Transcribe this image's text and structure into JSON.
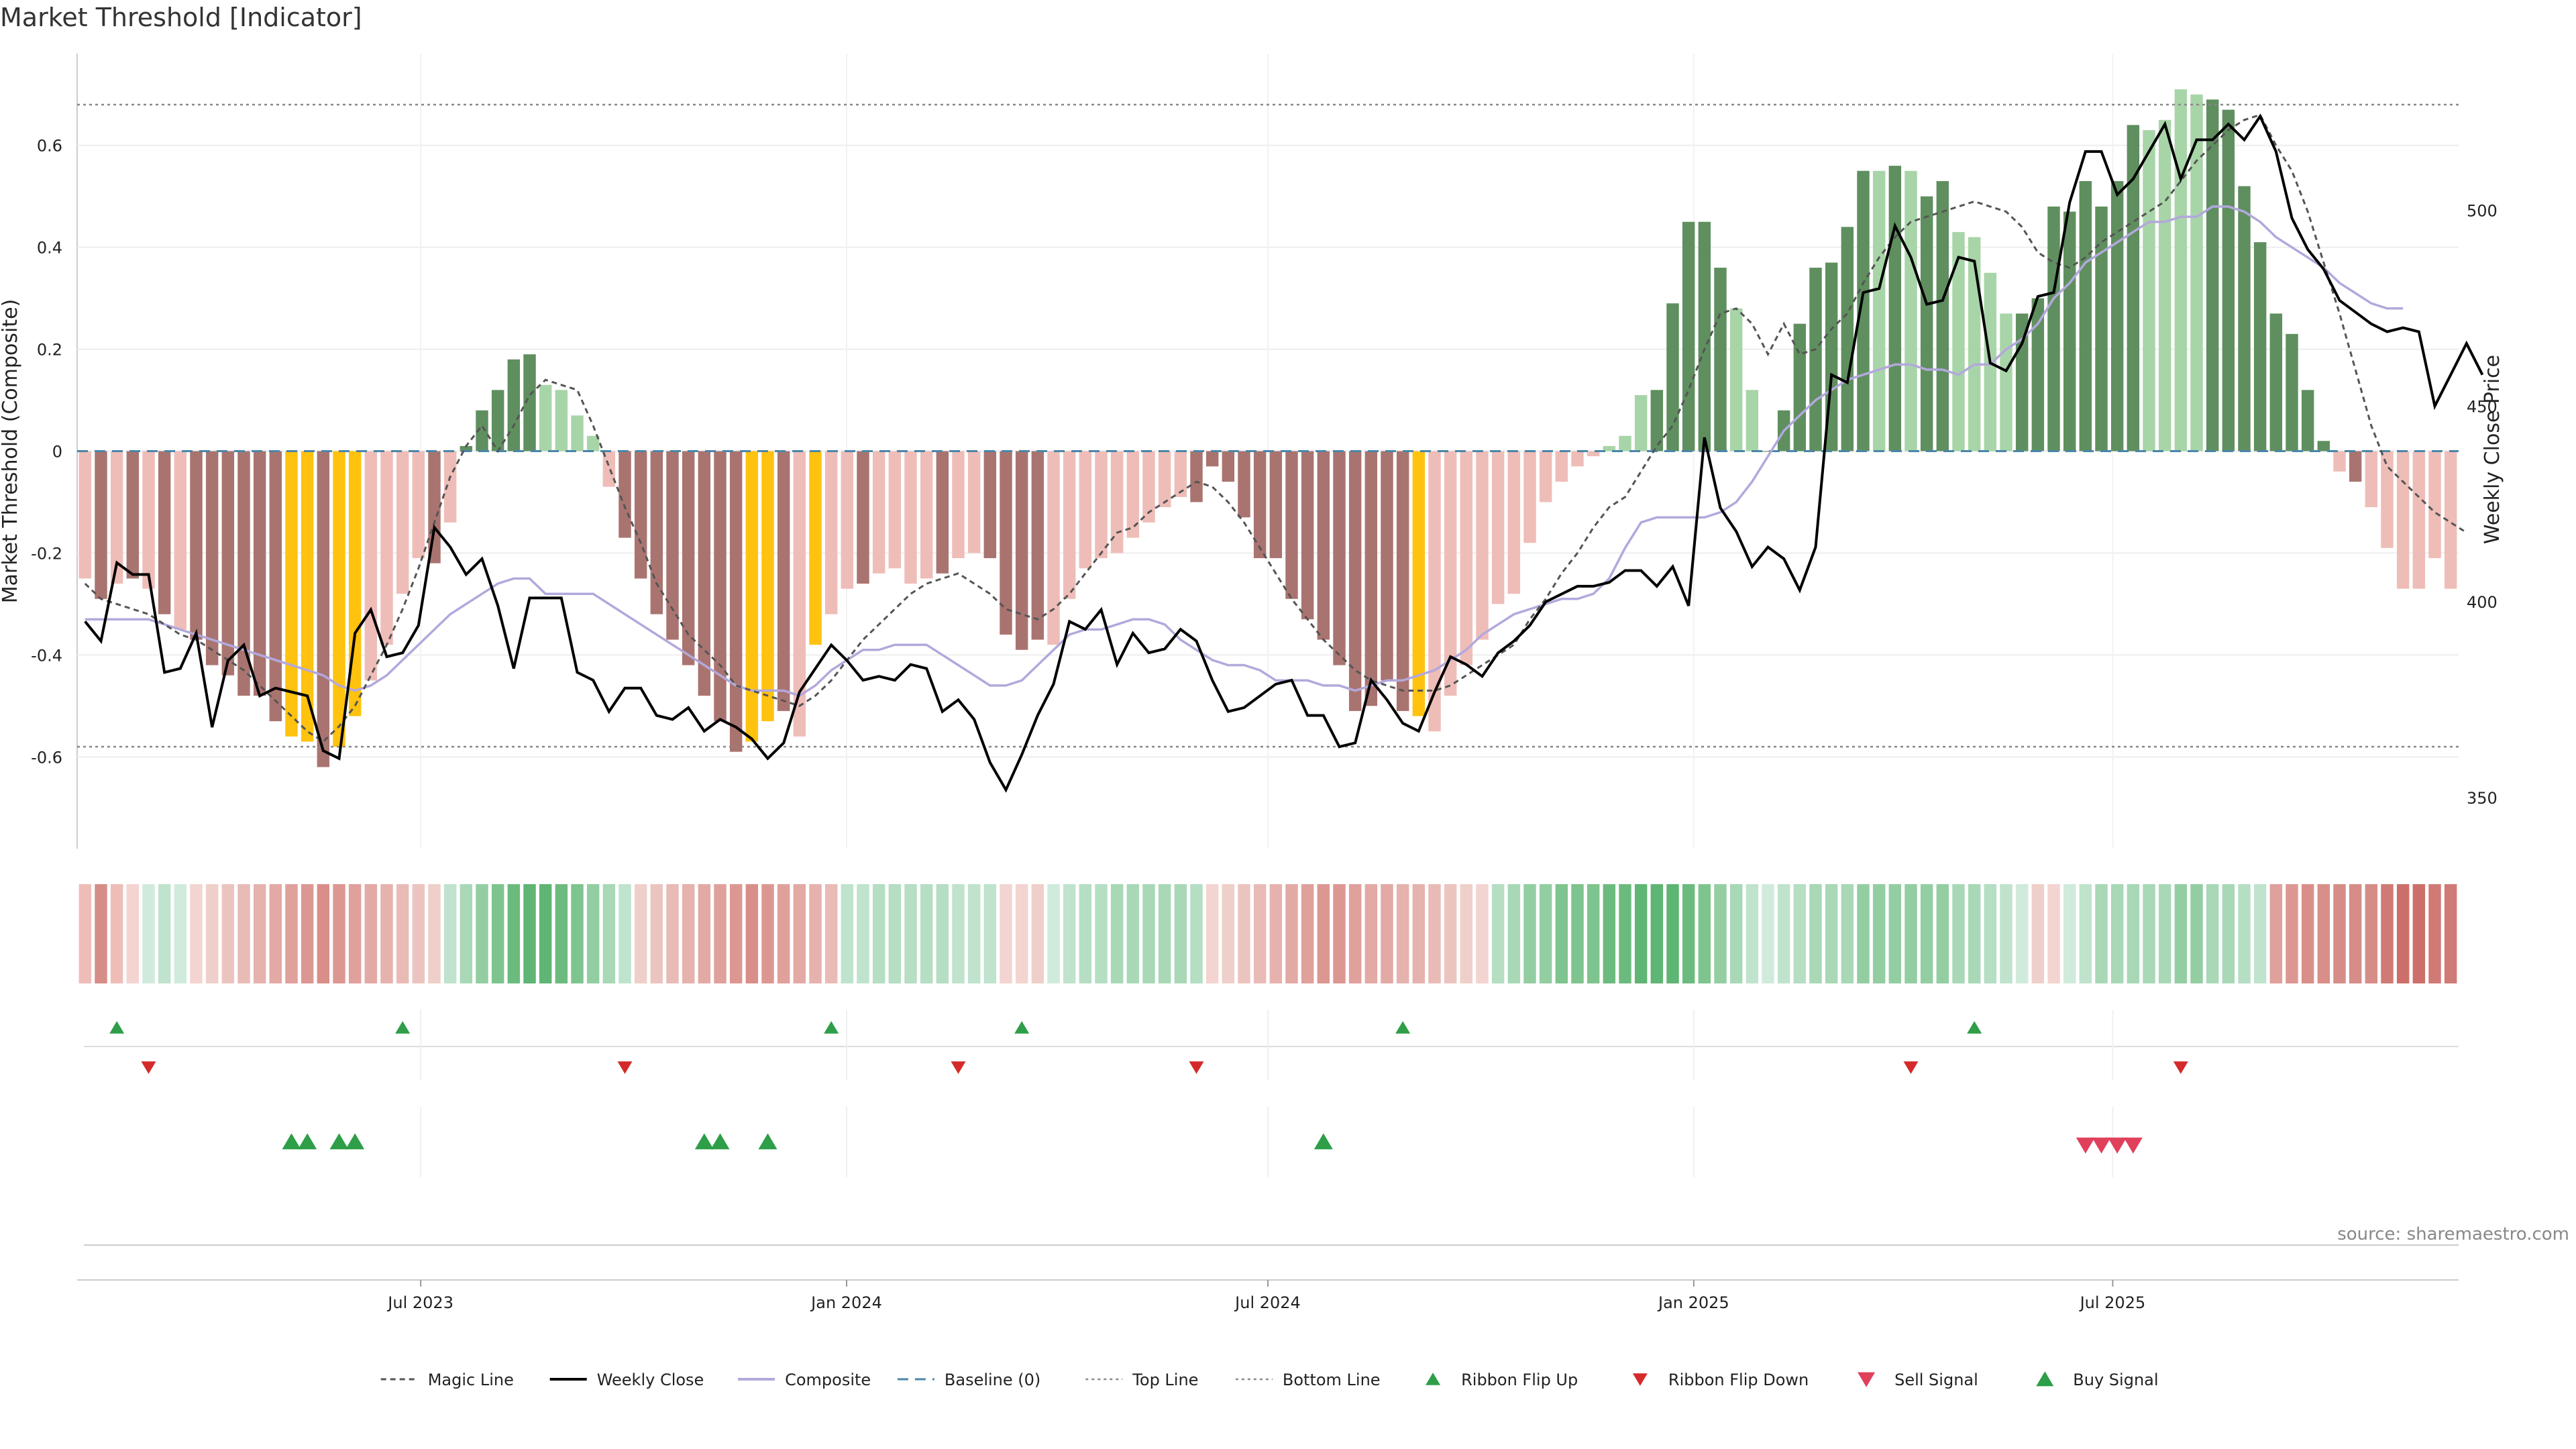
{
  "title": "Market Threshold [Indicator]",
  "source": "source: sharemaestro.com",
  "colors": {
    "bar_pos_strong": "#5f8f5f",
    "bar_pos_weak": "#a8d5a8",
    "bar_neg_strong": "#a97470",
    "bar_neg_weak": "#efbdb8",
    "bar_extreme": "#ffc20e",
    "magic": "#555555",
    "close": "#000000",
    "composite": "#b3a8dc",
    "baseline": "#4a86a8",
    "band": "#888888",
    "up_marker": "#2e9e48",
    "down_marker": "#d42a2a",
    "sell_marker": "#e0405a",
    "buy_marker": "#2e9e48"
  },
  "chart_data": {
    "type": "bar",
    "title": "Market Threshold [Indicator]",
    "ylabel": "Market Threshold (Composite)",
    "y2label": "Weekly Close Price",
    "ylim": [
      -0.78,
      0.78
    ],
    "y2lim": [
      337,
      540
    ],
    "yticks": [
      "-0.6",
      "-0.4",
      "-0.2",
      "0",
      "0.2",
      "0.4",
      "0.6"
    ],
    "y2ticks": [
      "350",
      "400",
      "450",
      "500"
    ],
    "x_start": "2023-02-06",
    "x_end": "2025-11-24",
    "x_ticks": [
      {
        "label": "Jul 2023",
        "date": "2023-07-01"
      },
      {
        "label": "Jan 2024",
        "date": "2024-01-01"
      },
      {
        "label": "Jul 2024",
        "date": "2024-07-01"
      },
      {
        "label": "Jan 2025",
        "date": "2025-01-01"
      },
      {
        "label": "Jul 2025",
        "date": "2025-07-01"
      }
    ],
    "top_line": 0.68,
    "bottom_line": -0.58,
    "baseline": 0,
    "composite_bars": [
      -0.25,
      -0.29,
      -0.26,
      -0.25,
      -0.27,
      -0.32,
      -0.35,
      -0.37,
      -0.42,
      -0.44,
      -0.48,
      -0.48,
      -0.53,
      -0.56,
      -0.57,
      -0.62,
      -0.58,
      -0.52,
      -0.45,
      -0.38,
      -0.28,
      -0.21,
      -0.22,
      -0.14,
      0.01,
      0.08,
      0.12,
      0.18,
      0.19,
      0.13,
      0.12,
      0.07,
      0.03,
      -0.07,
      -0.17,
      -0.25,
      -0.32,
      -0.37,
      -0.42,
      -0.48,
      -0.53,
      -0.59,
      -0.57,
      -0.53,
      -0.51,
      -0.56,
      -0.38,
      -0.32,
      -0.27,
      -0.26,
      -0.24,
      -0.23,
      -0.26,
      -0.25,
      -0.24,
      -0.21,
      -0.2,
      -0.21,
      -0.36,
      -0.39,
      -0.37,
      -0.38,
      -0.29,
      -0.23,
      -0.21,
      -0.2,
      -0.17,
      -0.14,
      -0.11,
      -0.09,
      -0.1,
      -0.03,
      -0.06,
      -0.13,
      -0.21,
      -0.21,
      -0.29,
      -0.33,
      -0.37,
      -0.42,
      -0.51,
      -0.5,
      -0.45,
      -0.51,
      -0.52,
      -0.55,
      -0.48,
      -0.42,
      -0.37,
      -0.3,
      -0.28,
      -0.18,
      -0.1,
      -0.06,
      -0.03,
      -0.01,
      0.01,
      0.03,
      0.11,
      0.12,
      0.29,
      0.45,
      0.45,
      0.36,
      0.28,
      0.12,
      0.0,
      0.08,
      0.25,
      0.36,
      0.37,
      0.44,
      0.55,
      0.55,
      0.56,
      0.55,
      0.5,
      0.53,
      0.43,
      0.42,
      0.35,
      0.27,
      0.27,
      0.3,
      0.48,
      0.47,
      0.53,
      0.48,
      0.53,
      0.64,
      0.63,
      0.65,
      0.71,
      0.7,
      0.69,
      0.67,
      0.52,
      0.41,
      0.27,
      0.23,
      0.12,
      0.02,
      -0.04,
      -0.06,
      -0.11,
      -0.19,
      -0.27,
      -0.27,
      -0.21,
      -0.27
    ],
    "extreme_bars": [
      13,
      14,
      16,
      17,
      42,
      43,
      46,
      84
    ],
    "strong_bars": [
      1,
      3,
      5,
      7,
      8,
      9,
      10,
      11,
      12,
      15,
      22,
      24,
      25,
      26,
      27,
      28,
      34,
      35,
      36,
      37,
      38,
      39,
      40,
      41,
      44,
      49,
      54,
      57,
      58,
      59,
      60,
      70,
      71,
      72,
      73,
      74,
      75,
      76,
      77,
      78,
      79,
      80,
      81,
      82,
      83,
      99,
      100,
      101,
      102,
      103,
      106,
      107,
      108,
      109,
      110,
      111,
      112,
      114,
      116,
      117,
      122,
      123,
      124,
      125,
      126,
      127,
      128,
      129,
      134,
      135,
      136,
      137,
      138,
      139,
      140,
      141,
      143
    ],
    "magic_line": [
      -0.26,
      -0.29,
      -0.3,
      -0.31,
      -0.32,
      -0.34,
      -0.36,
      -0.37,
      -0.39,
      -0.41,
      -0.43,
      -0.46,
      -0.49,
      -0.52,
      -0.55,
      -0.57,
      -0.54,
      -0.5,
      -0.44,
      -0.38,
      -0.31,
      -0.23,
      -0.14,
      -0.05,
      0.01,
      0.05,
      0.0,
      0.05,
      0.11,
      0.14,
      0.13,
      0.12,
      0.05,
      -0.03,
      -0.11,
      -0.18,
      -0.26,
      -0.31,
      -0.36,
      -0.39,
      -0.42,
      -0.46,
      -0.47,
      -0.48,
      -0.49,
      -0.5,
      -0.48,
      -0.45,
      -0.41,
      -0.37,
      -0.34,
      -0.31,
      -0.28,
      -0.26,
      -0.25,
      -0.24,
      -0.26,
      -0.28,
      -0.31,
      -0.32,
      -0.33,
      -0.31,
      -0.28,
      -0.24,
      -0.2,
      -0.16,
      -0.15,
      -0.12,
      -0.1,
      -0.08,
      -0.06,
      -0.07,
      -0.1,
      -0.14,
      -0.19,
      -0.24,
      -0.29,
      -0.33,
      -0.37,
      -0.4,
      -0.43,
      -0.45,
      -0.46,
      -0.47,
      -0.47,
      -0.47,
      -0.46,
      -0.44,
      -0.42,
      -0.4,
      -0.38,
      -0.33,
      -0.29,
      -0.24,
      -0.2,
      -0.15,
      -0.11,
      -0.09,
      -0.04,
      0.01,
      0.05,
      0.12,
      0.2,
      0.27,
      0.28,
      0.25,
      0.19,
      0.25,
      0.19,
      0.2,
      0.24,
      0.27,
      0.33,
      0.38,
      0.42,
      0.45,
      0.46,
      0.47,
      0.48,
      0.49,
      0.48,
      0.47,
      0.44,
      0.39,
      0.37,
      0.36,
      0.38,
      0.41,
      0.43,
      0.45,
      0.47,
      0.49,
      0.53,
      0.57,
      0.6,
      0.63,
      0.65,
      0.66,
      0.6,
      0.55,
      0.47,
      0.37,
      0.27,
      0.16,
      0.05,
      -0.03,
      -0.06,
      -0.09,
      -0.12,
      -0.14,
      -0.16
    ],
    "composite_line": [
      -0.33,
      -0.33,
      -0.33,
      -0.33,
      -0.33,
      -0.34,
      -0.35,
      -0.36,
      -0.37,
      -0.38,
      -0.39,
      -0.4,
      -0.41,
      -0.42,
      -0.43,
      -0.44,
      -0.46,
      -0.47,
      -0.46,
      -0.44,
      -0.41,
      -0.38,
      -0.35,
      -0.32,
      -0.3,
      -0.28,
      -0.26,
      -0.25,
      -0.25,
      -0.28,
      -0.28,
      -0.28,
      -0.28,
      -0.3,
      -0.32,
      -0.34,
      -0.36,
      -0.38,
      -0.4,
      -0.42,
      -0.44,
      -0.46,
      -0.47,
      -0.47,
      -0.47,
      -0.48,
      -0.46,
      -0.43,
      -0.41,
      -0.39,
      -0.39,
      -0.38,
      -0.38,
      -0.38,
      -0.4,
      -0.42,
      -0.44,
      -0.46,
      -0.46,
      -0.45,
      -0.42,
      -0.39,
      -0.36,
      -0.35,
      -0.35,
      -0.34,
      -0.33,
      -0.33,
      -0.34,
      -0.37,
      -0.39,
      -0.41,
      -0.42,
      -0.42,
      -0.43,
      -0.45,
      -0.45,
      -0.45,
      -0.46,
      -0.46,
      -0.47,
      -0.46,
      -0.45,
      -0.45,
      -0.44,
      -0.43,
      -0.41,
      -0.39,
      -0.36,
      -0.34,
      -0.32,
      -0.31,
      -0.3,
      -0.29,
      -0.29,
      -0.28,
      -0.25,
      -0.19,
      -0.14,
      -0.13,
      -0.13,
      -0.13,
      -0.13,
      -0.12,
      -0.1,
      -0.06,
      -0.01,
      0.04,
      0.07,
      0.1,
      0.12,
      0.14,
      0.15,
      0.16,
      0.17,
      0.17,
      0.16,
      0.16,
      0.15,
      0.17,
      0.17,
      0.2,
      0.22,
      0.25,
      0.3,
      0.33,
      0.37,
      0.39,
      0.41,
      0.43,
      0.45,
      0.45,
      0.46,
      0.46,
      0.48,
      0.48,
      0.47,
      0.45,
      0.42,
      0.4,
      0.38,
      0.36,
      0.33,
      0.31,
      0.29,
      0.28,
      0.28
    ],
    "weekly_close": [
      395,
      390,
      410,
      407,
      407,
      382,
      383,
      392,
      368,
      385,
      389,
      376,
      378,
      377,
      376,
      362,
      360,
      392,
      398,
      386,
      387,
      394,
      419,
      414,
      407,
      411,
      399,
      383,
      401,
      401,
      401,
      382,
      380,
      372,
      378,
      378,
      371,
      370,
      373,
      367,
      370,
      368,
      365,
      360,
      364,
      377,
      383,
      389,
      385,
      380,
      381,
      380,
      384,
      383,
      372,
      375,
      370,
      359,
      352,
      361,
      371,
      379,
      395,
      393,
      398,
      384,
      392,
      387,
      388,
      393,
      390,
      380,
      372,
      373,
      376,
      379,
      380,
      371,
      371,
      363,
      364,
      380,
      375,
      369,
      367,
      377,
      386,
      384,
      381,
      387,
      390,
      394,
      400,
      402,
      404,
      404,
      405,
      408,
      408,
      404,
      409,
      399,
      442,
      424,
      418,
      409,
      414,
      411,
      403,
      414,
      458,
      456,
      479,
      480,
      496,
      488,
      476,
      477,
      488,
      487,
      461,
      459,
      466,
      478,
      479,
      502,
      515,
      515,
      504,
      508,
      515,
      522,
      508,
      518,
      518,
      522,
      518,
      524,
      515,
      498,
      490,
      485,
      477,
      474,
      471,
      469,
      470,
      469,
      450,
      458,
      466,
      458
    ]
  },
  "ribbon": {
    "colors": [
      "#efbdb8",
      "#d68d88",
      "#efbdb8",
      "#f3d4d0",
      "#d0eadc",
      "#bfe3cc",
      "#d0eadc",
      "#f3d4d0",
      "#efcfc9",
      "#ecc4bf",
      "#e9bbb6",
      "#e6b2ad",
      "#e3a9a4",
      "#e0a09b",
      "#dd9792",
      "#da8e89",
      "#dd9792",
      "#e0a09b",
      "#e3a9a4",
      "#e6b2ad",
      "#e9bbb6",
      "#ecc4bf",
      "#efcfc9",
      "#bfe3cc",
      "#a8d8b6",
      "#93cea2",
      "#7ec48e",
      "#6cbb7e",
      "#5fb573",
      "#5fb573",
      "#6cbb7e",
      "#7ec48e",
      "#93cea2",
      "#a8d8b6",
      "#bfe3cc",
      "#efcfc9",
      "#ecc4bf",
      "#e9bbb6",
      "#e6b2ad",
      "#e3a9a4",
      "#e0a09b",
      "#dd9792",
      "#da8e89",
      "#dd9792",
      "#e0a09b",
      "#e3a9a4",
      "#e6b2ad",
      "#e9bbb6",
      "#bfe3cc",
      "#bfe3cc",
      "#b5dec3",
      "#b5dec3",
      "#b5dec3",
      "#b5dec3",
      "#b5dec3",
      "#bfe3cc",
      "#bfe3cc",
      "#bfe3cc",
      "#f3d4d0",
      "#f3d4d0",
      "#efcfc9",
      "#d0eadc",
      "#bfe3cc",
      "#b5dec3",
      "#b5dec3",
      "#a8d8b6",
      "#a8d8b6",
      "#a8d8b6",
      "#a8d8b6",
      "#a8d8b6",
      "#b5dec3",
      "#f3d4d0",
      "#efcfc9",
      "#ecc4bf",
      "#e9bbb6",
      "#e6b2ad",
      "#e3a9a4",
      "#e0a09b",
      "#dd9792",
      "#dd9792",
      "#e0a09b",
      "#e3a9a4",
      "#e3a9a4",
      "#e6b2ad",
      "#e6b2ad",
      "#e9bbb6",
      "#ecc4bf",
      "#efcfc9",
      "#f3d4d0",
      "#b5dec3",
      "#a8d8b6",
      "#93cea2",
      "#93cea2",
      "#7ec48e",
      "#7ec48e",
      "#7ec48e",
      "#6cbb7e",
      "#6cbb7e",
      "#5fb573",
      "#5fb573",
      "#5fb573",
      "#6cbb7e",
      "#7ec48e",
      "#93cea2",
      "#a8d8b6",
      "#bfe3cc",
      "#d0eadc",
      "#bfe3cc",
      "#b5dec3",
      "#a8d8b6",
      "#a8d8b6",
      "#a8d8b6",
      "#93cea2",
      "#93cea2",
      "#93cea2",
      "#93cea2",
      "#93cea2",
      "#93cea2",
      "#a8d8b6",
      "#a8d8b6",
      "#b5dec3",
      "#bfe3cc",
      "#d0eadc",
      "#efcfc9",
      "#f3d4d0",
      "#d0eadc",
      "#bfe3cc",
      "#a8d8b6",
      "#a8d8b6",
      "#a8d8b6",
      "#a8d8b6",
      "#a8d8b6",
      "#93cea2",
      "#93cea2",
      "#a8d8b6",
      "#a8d8b6",
      "#b5dec3",
      "#bfe3cc",
      "#e0a09b",
      "#dd9792",
      "#da8e89",
      "#da8e89",
      "#d68d88",
      "#d68d88",
      "#d68d88",
      "#d07a75",
      "#cc6f6a",
      "#cc6f6a",
      "#d07a75",
      "#d07a75"
    ]
  },
  "signals": {
    "ribbon_flip_up": [
      2,
      20,
      47,
      59,
      83,
      119
    ],
    "ribbon_flip_down": [
      4,
      34,
      55,
      70,
      115,
      132
    ],
    "buy_signal": [
      13,
      14,
      16,
      17,
      39,
      40,
      43,
      78
    ],
    "sell_signal": [
      126,
      127,
      128,
      129
    ]
  },
  "legend": [
    {
      "label": "Magic Line",
      "key": "magic-line"
    },
    {
      "label": "Weekly Close",
      "key": "weekly-close"
    },
    {
      "label": "Composite",
      "key": "composite"
    },
    {
      "label": "Baseline (0)",
      "key": "baseline"
    },
    {
      "label": "Top Line",
      "key": "top-line"
    },
    {
      "label": "Bottom Line",
      "key": "bottom-line"
    },
    {
      "label": "Ribbon Flip Up",
      "key": "ribbon-flip-up"
    },
    {
      "label": "Ribbon Flip Down",
      "key": "ribbon-flip-down"
    },
    {
      "label": "Sell Signal",
      "key": "sell-signal"
    },
    {
      "label": "Buy Signal",
      "key": "buy-signal"
    }
  ]
}
